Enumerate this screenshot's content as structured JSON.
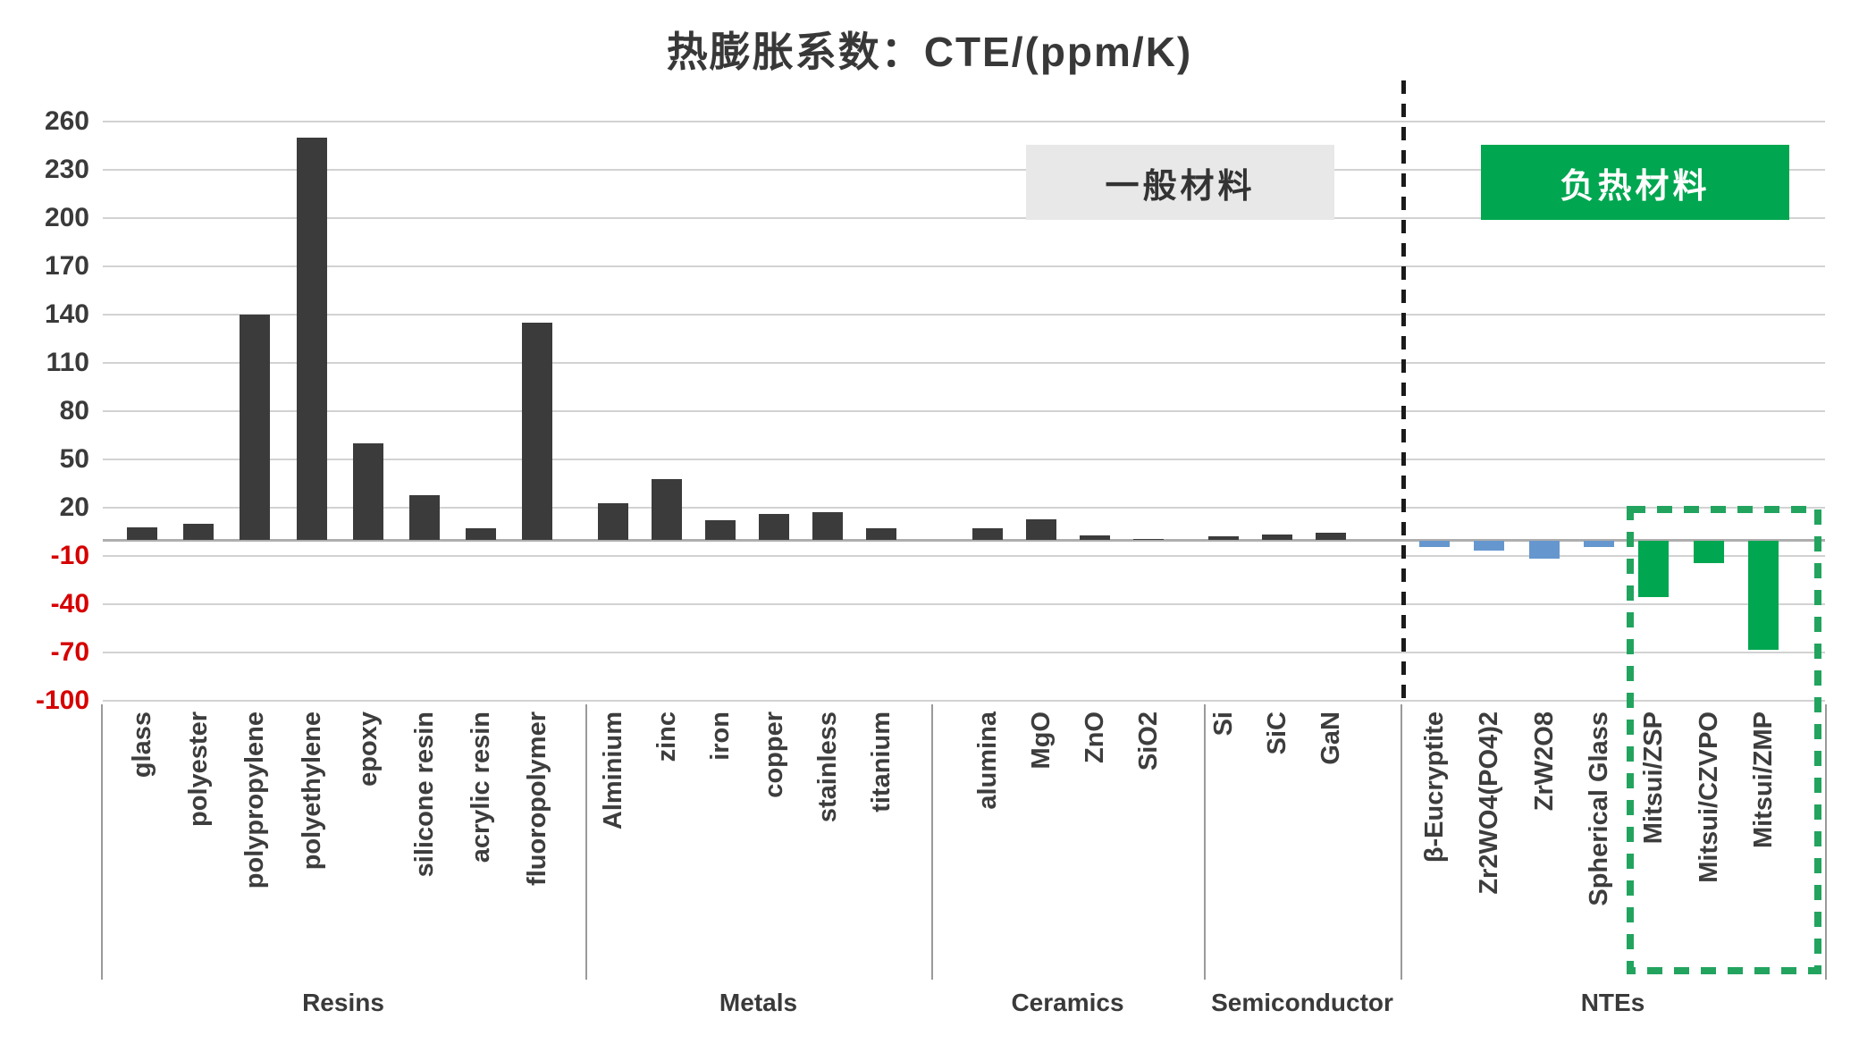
{
  "title": "热膨胀系数：CTE/(ppm/K)",
  "badges": {
    "general_label": "一般材料",
    "negative_label": "负热材料"
  },
  "colors": {
    "general_bar": "#3b3b3b",
    "nte_reference_bar": "#6597ce",
    "nte_mitsui_bar": "#00a650",
    "badge_general_bg": "#e8e8e8",
    "badge_negative_bg": "#00a650",
    "negative_tick_text": "#d60000",
    "positive_tick_text": "#3a3a3a",
    "highlight_box": "#22a45f",
    "divider": "#1a1a1a"
  },
  "chart_data": {
    "type": "bar",
    "title": "热膨胀系数：CTE/(ppm/K)",
    "ylabel": "CTE (ppm/K)",
    "ylim": [
      -100,
      260
    ],
    "gridline_step": 30,
    "grid": true,
    "y_ticks": [
      260,
      230,
      200,
      170,
      140,
      110,
      80,
      50,
      20,
      -10,
      -40,
      -70,
      -100
    ],
    "groups": [
      {
        "name": "Resins",
        "items": [
          {
            "label": "glass",
            "value": 8,
            "series": "general"
          },
          {
            "label": "polyester",
            "value": 10,
            "series": "general"
          },
          {
            "label": "polypropylene",
            "value": 140,
            "series": "general"
          },
          {
            "label": "polyethylene",
            "value": 250,
            "series": "general"
          },
          {
            "label": "epoxy",
            "value": 60,
            "series": "general"
          },
          {
            "label": "silicone resin",
            "value": 28,
            "series": "general"
          },
          {
            "label": "acrylic resin",
            "value": 7,
            "series": "general"
          },
          {
            "label": "fluoropolymer",
            "value": 135,
            "series": "general"
          }
        ]
      },
      {
        "name": "Metals",
        "items": [
          {
            "label": "Alminium",
            "value": 23,
            "series": "general"
          },
          {
            "label": "zinc",
            "value": 38,
            "series": "general"
          },
          {
            "label": "iron",
            "value": 12,
            "series": "general"
          },
          {
            "label": "copper",
            "value": 16,
            "series": "general"
          },
          {
            "label": "stainless",
            "value": 17,
            "series": "general"
          },
          {
            "label": "titanium",
            "value": 7,
            "series": "general"
          }
        ]
      },
      {
        "name": "Ceramics",
        "items": [
          {
            "label": "alumina",
            "value": 7,
            "series": "general"
          },
          {
            "label": "MgO",
            "value": 13,
            "series": "general"
          },
          {
            "label": "ZnO",
            "value": 3,
            "series": "general"
          },
          {
            "label": "SiO2",
            "value": 0.5,
            "series": "general"
          }
        ]
      },
      {
        "name": "Semiconductor",
        "items": [
          {
            "label": "Si",
            "value": 2.5,
            "series": "general"
          },
          {
            "label": "SiC",
            "value": 3.5,
            "series": "general"
          },
          {
            "label": "GaN",
            "value": 4.5,
            "series": "general"
          }
        ]
      },
      {
        "name": "NTEs",
        "items": [
          {
            "label": "β-Eucryptite",
            "value": -4,
            "series": "nte_reference"
          },
          {
            "label": "Zr2WO4(PO4)2",
            "value": -6,
            "series": "nte_reference"
          },
          {
            "label": "ZrW2O8",
            "value": -11,
            "series": "nte_reference"
          },
          {
            "label": "Spherical Glass",
            "value": -4,
            "series": "nte_reference"
          },
          {
            "label": "Mitsui/ZSP",
            "value": -35,
            "series": "nte_mitsui"
          },
          {
            "label": "Mitsui/CZVPO",
            "value": -14,
            "series": "nte_mitsui"
          },
          {
            "label": "Mitsui/ZMP",
            "value": -68,
            "series": "nte_mitsui"
          }
        ]
      }
    ],
    "annotations": {
      "general_zone_label": "一般材料",
      "negative_zone_label": "负热材料",
      "highlight_box_items": [
        "Mitsui/ZSP",
        "Mitsui/CZVPO",
        "Mitsui/ZMP"
      ]
    },
    "legend_position": "top-right"
  }
}
